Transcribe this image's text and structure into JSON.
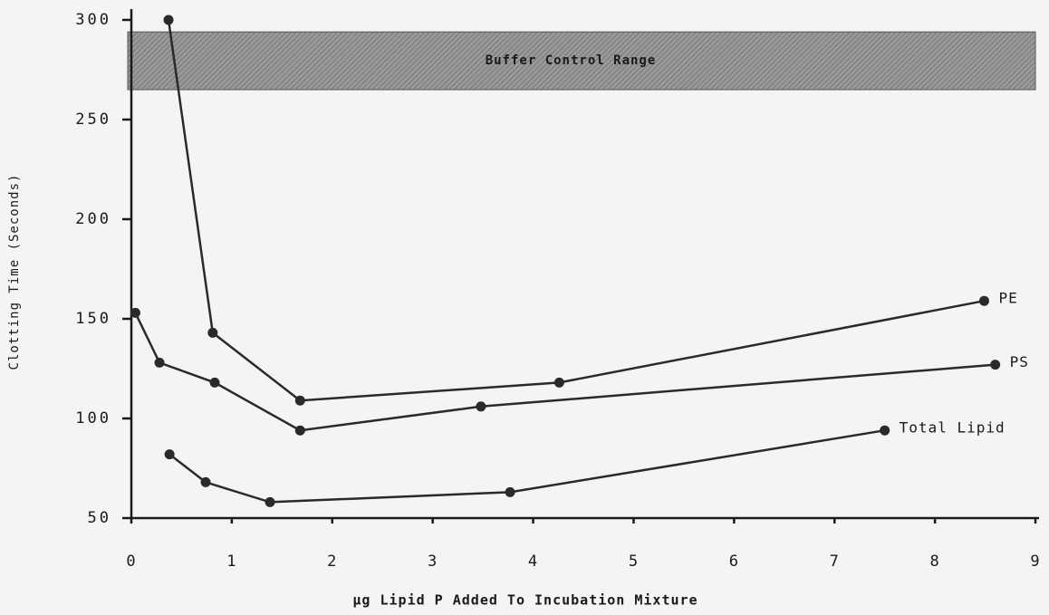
{
  "chart_data": {
    "type": "line",
    "xlabel": "µg Lipid P Added To Incubation Mixture",
    "ylabel": "Clotting Time (Seconds)",
    "xlim": [
      0,
      9
    ],
    "ylim": [
      50,
      300
    ],
    "xticks": [
      0,
      1,
      2,
      3,
      4,
      5,
      6,
      7,
      8,
      9
    ],
    "yticks": [
      50,
      100,
      150,
      200,
      250,
      300
    ],
    "band": {
      "label": "Buffer Control Range",
      "range": [
        265,
        294
      ]
    },
    "series": [
      {
        "name": "PE",
        "color": "#2a2a2a",
        "x": [
          0.37,
          0.81,
          1.68,
          4.26,
          8.49
        ],
        "values": [
          300,
          143,
          109,
          118,
          159
        ]
      },
      {
        "name": "PS",
        "color": "#2a2a2a",
        "x": [
          0.04,
          0.28,
          0.83,
          1.68,
          3.48,
          8.6
        ],
        "values": [
          153,
          128,
          118,
          94,
          106,
          127
        ]
      },
      {
        "name": "Total Lipid",
        "color": "#2a2a2a",
        "x": [
          0.38,
          0.74,
          1.38,
          3.77,
          7.5
        ],
        "values": [
          82,
          68,
          58,
          63,
          94
        ]
      }
    ]
  }
}
